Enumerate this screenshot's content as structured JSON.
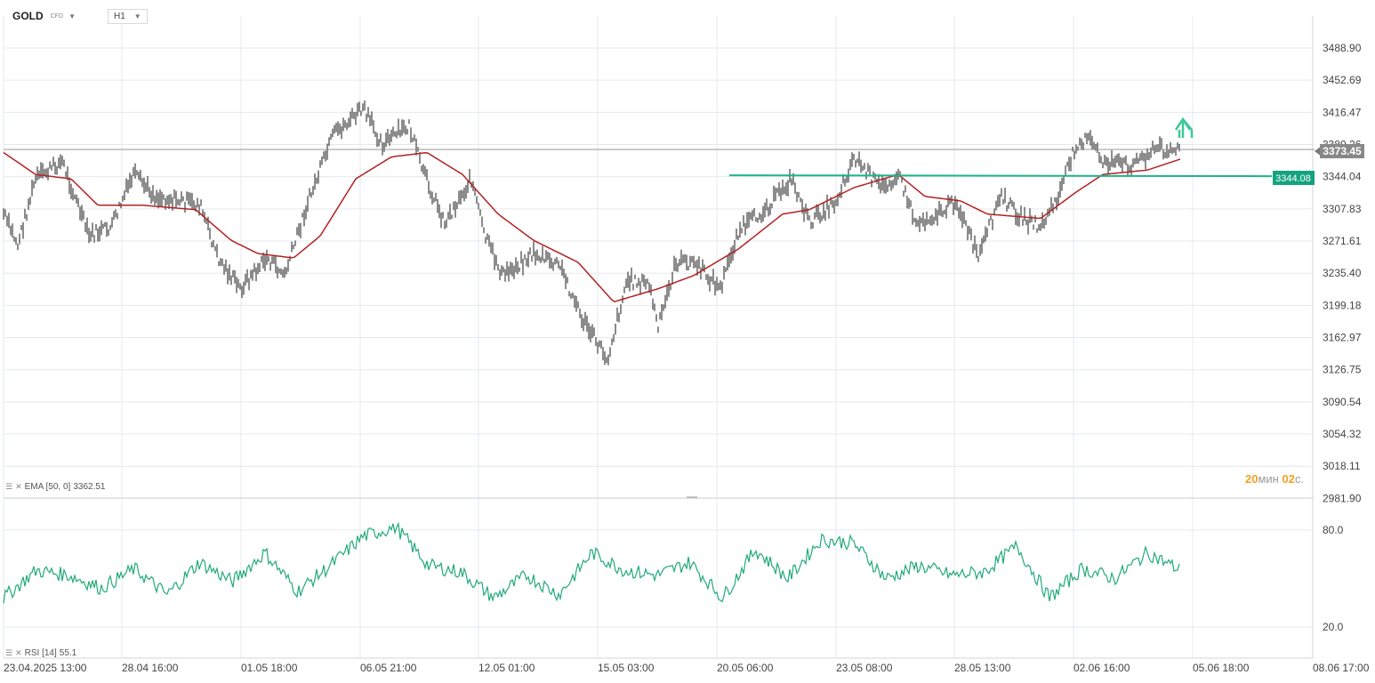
{
  "header": {
    "symbol": "GOLD",
    "symbol_type": "CFD",
    "timeframe": "H1"
  },
  "price_axis_labels": [
    "3488.90",
    "3452.69",
    "3416.47",
    "3380.26",
    "3344.04",
    "3307.83",
    "3271.61",
    "3235.40",
    "3199.18",
    "3162.97",
    "3126.75",
    "3090.54",
    "3054.32",
    "3018.11",
    "2981.90"
  ],
  "current_price": "3373.45",
  "level_price": "3344.08",
  "timer": {
    "minutes": "20",
    "minutes_unit": "мин",
    "seconds": "02",
    "seconds_unit": "с."
  },
  "indicators": {
    "ema": {
      "label": "EMA [50, 0]",
      "value": "3362.51"
    },
    "rsi": {
      "label": "RSI [14]",
      "value": "55.1"
    }
  },
  "rsi_axis_labels": [
    "80.0",
    "20.0"
  ],
  "time_axis_labels": [
    "23.04.2025 13:00",
    "28.04 16:00",
    "01.05 18:00",
    "06.05 21:00",
    "12.05 01:00",
    "15.05 03:00",
    "20.05 06:00",
    "23.05 08:00",
    "28.05 13:00",
    "02.06 16:00",
    "05.06 18:00",
    "08.06 17:00"
  ],
  "colors": {
    "candle": "#1a1a1a",
    "ema": "#b22222",
    "level": "#1db58a",
    "rsi": "#22aa77",
    "grid": "#e6e9ec",
    "arrow": "#3cc79a"
  },
  "chart_data": {
    "type": "line",
    "title": "",
    "instrument": "GOLD",
    "timeframe": "H1",
    "x": [
      "23.04.2025 13:00",
      "28.04 16:00",
      "01.05 18:00",
      "06.05 21:00",
      "12.05 01:00",
      "15.05 03:00",
      "20.05 06:00",
      "23.05 08:00",
      "28.05 13:00",
      "02.06 16:00"
    ],
    "series": [
      {
        "name": "",
        "values": [
          3300,
          3290,
          3240,
          3400,
          3255,
          3160,
          3240,
          3350,
          3270,
          3375
        ]
      },
      {
        "name": "EMA [50, 0]",
        "values": [
          3370,
          3310,
          3250,
          3360,
          3300,
          3200,
          3240,
          3320,
          3310,
          3362.51
        ]
      }
    ],
    "ylim": [
      2981.9,
      3488.9
    ],
    "horizontal_levels": [
      3344.08,
      3373.45
    ],
    "rsi": {
      "name": "RSI [14]",
      "values": [
        38,
        55,
        52,
        44,
        56,
        40,
        60,
        48,
        66,
        42,
        58,
        76,
        82,
        58,
        54,
        38,
        52,
        40,
        66,
        55,
        52,
        60,
        38,
        68,
        50,
        74,
        72,
        50,
        58,
        52,
        54,
        70,
        38,
        56,
        50,
        66,
        55.1
      ],
      "ylim": [
        20,
        80
      ],
      "levels": [
        20,
        80
      ]
    }
  }
}
